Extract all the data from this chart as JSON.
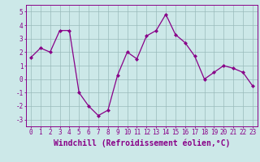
{
  "x": [
    0,
    1,
    2,
    3,
    4,
    5,
    6,
    7,
    8,
    9,
    10,
    11,
    12,
    13,
    14,
    15,
    16,
    17,
    18,
    19,
    20,
    21,
    22,
    23
  ],
  "y": [
    1.6,
    2.3,
    2.0,
    3.6,
    3.6,
    -1.0,
    -2.0,
    -2.7,
    -2.3,
    0.3,
    2.0,
    1.5,
    3.2,
    3.6,
    4.8,
    3.3,
    2.7,
    1.7,
    0.0,
    0.5,
    1.0,
    0.8,
    0.5,
    -0.5
  ],
  "line_color": "#880088",
  "marker": "D",
  "marker_size": 2.0,
  "bg_color": "#cce8e8",
  "grid_color": "#99bbbb",
  "xlabel": "Windchill (Refroidissement éolien,°C)",
  "ylim": [
    -3.5,
    5.5
  ],
  "yticks": [
    -3,
    -2,
    -1,
    0,
    1,
    2,
    3,
    4,
    5
  ],
  "xlim": [
    -0.5,
    23.5
  ],
  "xticks": [
    0,
    1,
    2,
    3,
    4,
    5,
    6,
    7,
    8,
    9,
    10,
    11,
    12,
    13,
    14,
    15,
    16,
    17,
    18,
    19,
    20,
    21,
    22,
    23
  ],
  "tick_label_fontsize": 5.5,
  "xlabel_fontsize": 7.0,
  "axis_color": "#880088",
  "spine_color": "#880088",
  "line_width": 0.9
}
